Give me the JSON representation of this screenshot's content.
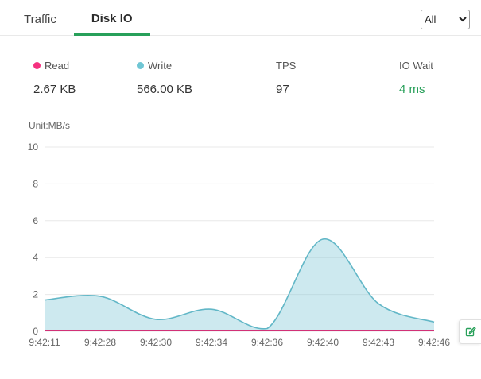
{
  "colors": {
    "accent_green": "#28a05a"
  },
  "tabs": [
    {
      "label": "Traffic",
      "active": false
    },
    {
      "label": "Disk IO",
      "active": true
    }
  ],
  "filter": {
    "selected": "All"
  },
  "stats": [
    {
      "label": "Read",
      "value": "2.67 KB",
      "dot_color": "#f5317f"
    },
    {
      "label": "Write",
      "value": "566.00 KB",
      "dot_color": "#6fc6d4"
    },
    {
      "label": "TPS",
      "value": "97"
    },
    {
      "label": "IO Wait",
      "value": "4 ms",
      "value_color": "#28a05a"
    }
  ],
  "chart_data": {
    "type": "area",
    "title": "",
    "unit_label": "Unit:MB/s",
    "xlabel": "",
    "ylabel": "MB/s",
    "ylim": [
      0,
      10
    ],
    "yticks": [
      0,
      2,
      4,
      6,
      8,
      10
    ],
    "grid": true,
    "x": [
      "9:42:11",
      "9:42:28",
      "9:42:30",
      "9:42:34",
      "9:42:36",
      "9:42:40",
      "9:42:43",
      "9:42:46"
    ],
    "series": [
      {
        "name": "Write",
        "color": "#62b7c7",
        "fill": "rgba(129,201,216,0.40)",
        "values": [
          1.7,
          1.9,
          0.65,
          1.2,
          0.15,
          5.0,
          1.5,
          0.5
        ]
      },
      {
        "name": "Read",
        "color": "#d23177",
        "fill": "none",
        "values": [
          0.05,
          0.05,
          0.05,
          0.05,
          0.05,
          0.05,
          0.05,
          0.05
        ]
      }
    ]
  }
}
